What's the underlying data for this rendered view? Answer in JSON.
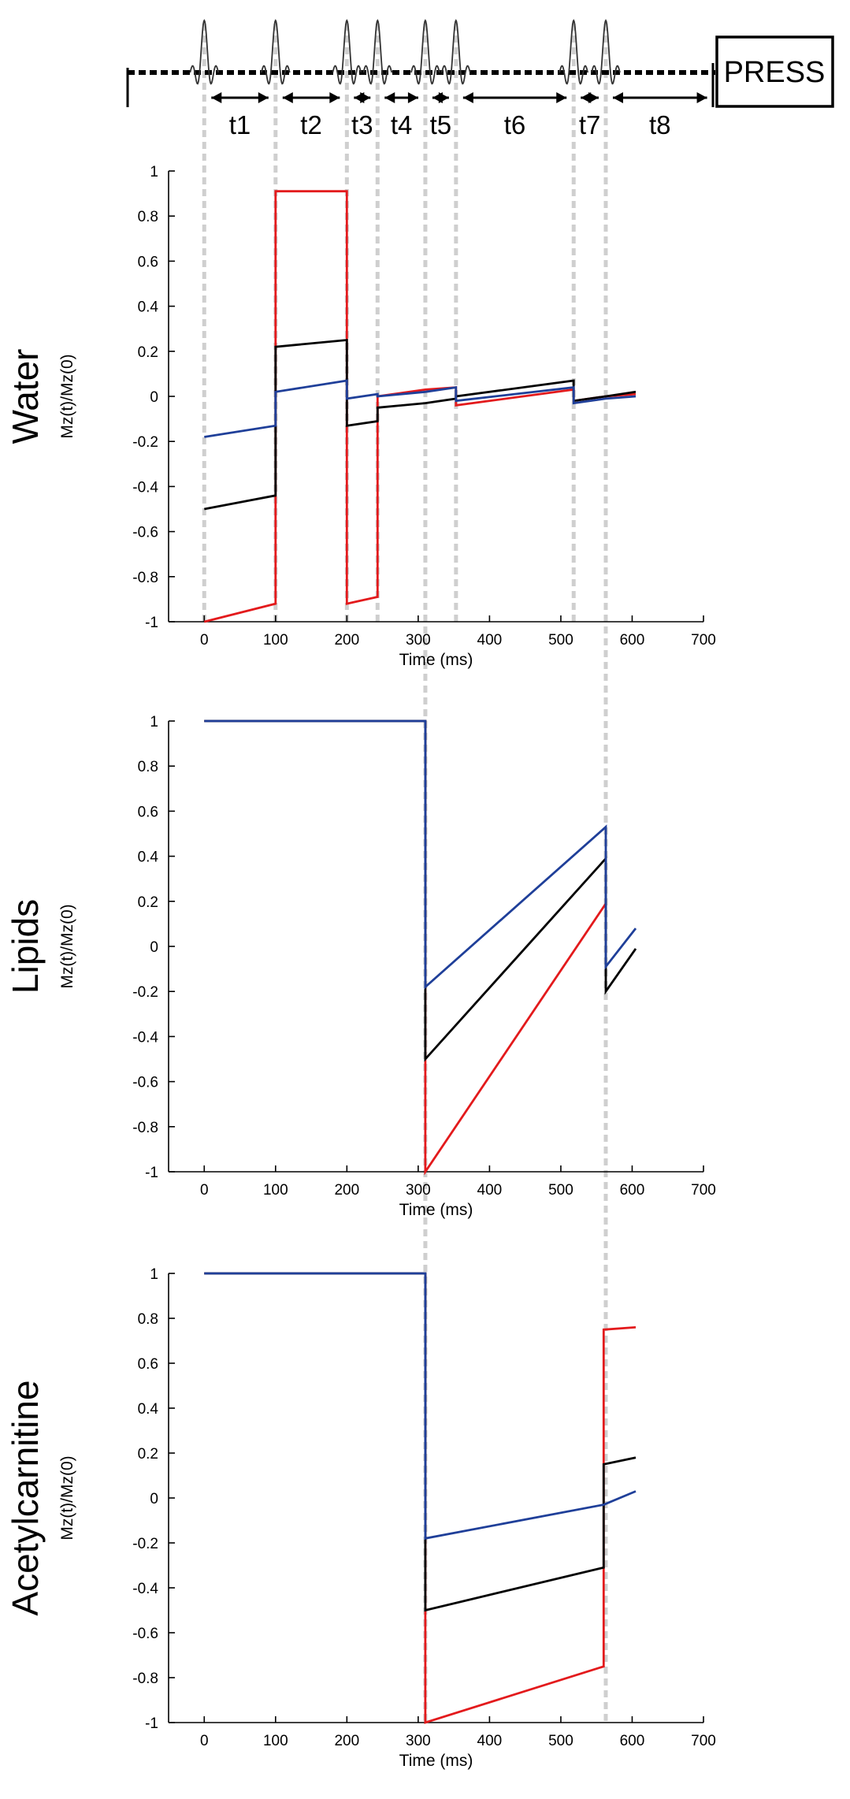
{
  "sequence": {
    "interval_labels": [
      "t1",
      "t2",
      "t3",
      "t4",
      "t5",
      "t6",
      "t7",
      "t8"
    ],
    "pulse_times_ms": [
      0,
      100,
      200,
      243,
      310,
      353,
      518,
      563
    ],
    "end_time_ms": 715,
    "press_label": "PRESS"
  },
  "colors": {
    "red": "#e31a1c",
    "black": "#000000",
    "blue": "#1f3f99",
    "guide": "#cfcfcf"
  },
  "chart_data": [
    {
      "type": "line",
      "title": "Water",
      "xlabel": "Time (ms)",
      "ylabel": "Mz(t)/Mz(0)",
      "xlim": [
        -50,
        700
      ],
      "ylim": [
        -1,
        1
      ],
      "xticks": [
        0,
        100,
        200,
        300,
        400,
        500,
        600,
        700
      ],
      "yticks": [
        1,
        0.8,
        0.6,
        0.4,
        0.2,
        0,
        -0.2,
        -0.4,
        -0.6,
        -0.8,
        -1
      ],
      "ytick_labels": [
        "1",
        "0.8",
        "0.6",
        "0.4",
        "0.2",
        "0",
        "-0.2",
        "-0.4",
        "-0.6",
        "-0.8",
        "-1"
      ],
      "series": [
        {
          "name": "red",
          "color": "red",
          "points": [
            [
              0,
              -1
            ],
            [
              100,
              -0.92
            ],
            [
              100,
              0.91
            ],
            [
              200,
              0.91
            ],
            [
              200,
              -0.92
            ],
            [
              243,
              -0.89
            ],
            [
              243,
              0.0
            ],
            [
              310,
              0.03
            ],
            [
              353,
              0.04
            ],
            [
              353,
              -0.04
            ],
            [
              518,
              0.03
            ],
            [
              518,
              -0.02
            ],
            [
              563,
              0.0
            ],
            [
              605,
              0.01
            ]
          ]
        },
        {
          "name": "black",
          "color": "black",
          "points": [
            [
              0,
              -0.5
            ],
            [
              100,
              -0.44
            ],
            [
              100,
              0.22
            ],
            [
              200,
              0.25
            ],
            [
              200,
              -0.13
            ],
            [
              243,
              -0.11
            ],
            [
              243,
              -0.05
            ],
            [
              310,
              -0.03
            ],
            [
              353,
              -0.01
            ],
            [
              353,
              0.0
            ],
            [
              518,
              0.07
            ],
            [
              518,
              -0.02
            ],
            [
              563,
              0.0
            ],
            [
              605,
              0.02
            ]
          ]
        },
        {
          "name": "blue",
          "color": "blue",
          "points": [
            [
              0,
              -0.18
            ],
            [
              100,
              -0.13
            ],
            [
              100,
              0.02
            ],
            [
              200,
              0.07
            ],
            [
              200,
              -0.01
            ],
            [
              243,
              0.01
            ],
            [
              243,
              0.0
            ],
            [
              310,
              0.02
            ],
            [
              353,
              0.04
            ],
            [
              353,
              -0.02
            ],
            [
              518,
              0.04
            ],
            [
              518,
              -0.03
            ],
            [
              563,
              -0.01
            ],
            [
              605,
              0.0
            ]
          ]
        }
      ]
    },
    {
      "type": "line",
      "title": "Lipids",
      "xlabel": "Time (ms)",
      "ylabel": "Mz(t)/Mz(0)",
      "xlim": [
        -50,
        700
      ],
      "ylim": [
        -1,
        1
      ],
      "xticks": [
        0,
        100,
        200,
        300,
        400,
        500,
        600,
        700
      ],
      "yticks": [
        1,
        0.8,
        0.6,
        0.4,
        0.2,
        0,
        -0.2,
        -0.4,
        -0.6,
        -0.8,
        -1
      ],
      "ytick_labels": [
        "1",
        "0.8",
        "0.6",
        "0.4",
        "0.2",
        "0",
        "-0.2",
        "-0.4",
        "-0.6",
        "-0.8",
        "-1"
      ],
      "series": [
        {
          "name": "red",
          "color": "red",
          "points": [
            [
              0,
              1
            ],
            [
              310,
              1
            ],
            [
              310,
              -1
            ],
            [
              563,
              0.19
            ]
          ]
        },
        {
          "name": "black",
          "color": "black",
          "points": [
            [
              0,
              1
            ],
            [
              310,
              1
            ],
            [
              310,
              -0.5
            ],
            [
              563,
              0.39
            ],
            [
              563,
              -0.2
            ],
            [
              605,
              -0.01
            ]
          ]
        },
        {
          "name": "blue",
          "color": "blue",
          "points": [
            [
              0,
              1
            ],
            [
              310,
              1
            ],
            [
              310,
              -0.18
            ],
            [
              563,
              0.53
            ],
            [
              563,
              -0.09
            ],
            [
              605,
              0.08
            ]
          ]
        }
      ]
    },
    {
      "type": "line",
      "title": "Acetylcarnitine",
      "xlabel": "Time (ms)",
      "ylabel": "Mz(t)/Mz(0)",
      "xlim": [
        -50,
        700
      ],
      "ylim": [
        -1,
        1
      ],
      "xticks": [
        0,
        100,
        200,
        300,
        400,
        500,
        600,
        700
      ],
      "yticks": [
        1,
        0.8,
        0.6,
        0.4,
        0.2,
        0,
        -0.2,
        -0.4,
        -0.6,
        -0.8,
        -1
      ],
      "ytick_labels": [
        "1",
        "0.8",
        "0.6",
        "0.4",
        "0.2",
        "0",
        "-0.2",
        "-0.4",
        "-0.6",
        "-0.8",
        "-1"
      ],
      "series": [
        {
          "name": "red",
          "color": "red",
          "points": [
            [
              0,
              1
            ],
            [
              310,
              1
            ],
            [
              310,
              -1
            ],
            [
              560,
              -0.75
            ],
            [
              560,
              0.75
            ],
            [
              605,
              0.76
            ]
          ]
        },
        {
          "name": "black",
          "color": "black",
          "points": [
            [
              0,
              1
            ],
            [
              310,
              1
            ],
            [
              310,
              -0.5
            ],
            [
              560,
              -0.31
            ],
            [
              560,
              0.15
            ],
            [
              605,
              0.18
            ]
          ]
        },
        {
          "name": "blue",
          "color": "blue",
          "points": [
            [
              0,
              1
            ],
            [
              310,
              1
            ],
            [
              310,
              -0.18
            ],
            [
              560,
              -0.03
            ],
            [
              605,
              0.03
            ]
          ]
        }
      ]
    }
  ]
}
